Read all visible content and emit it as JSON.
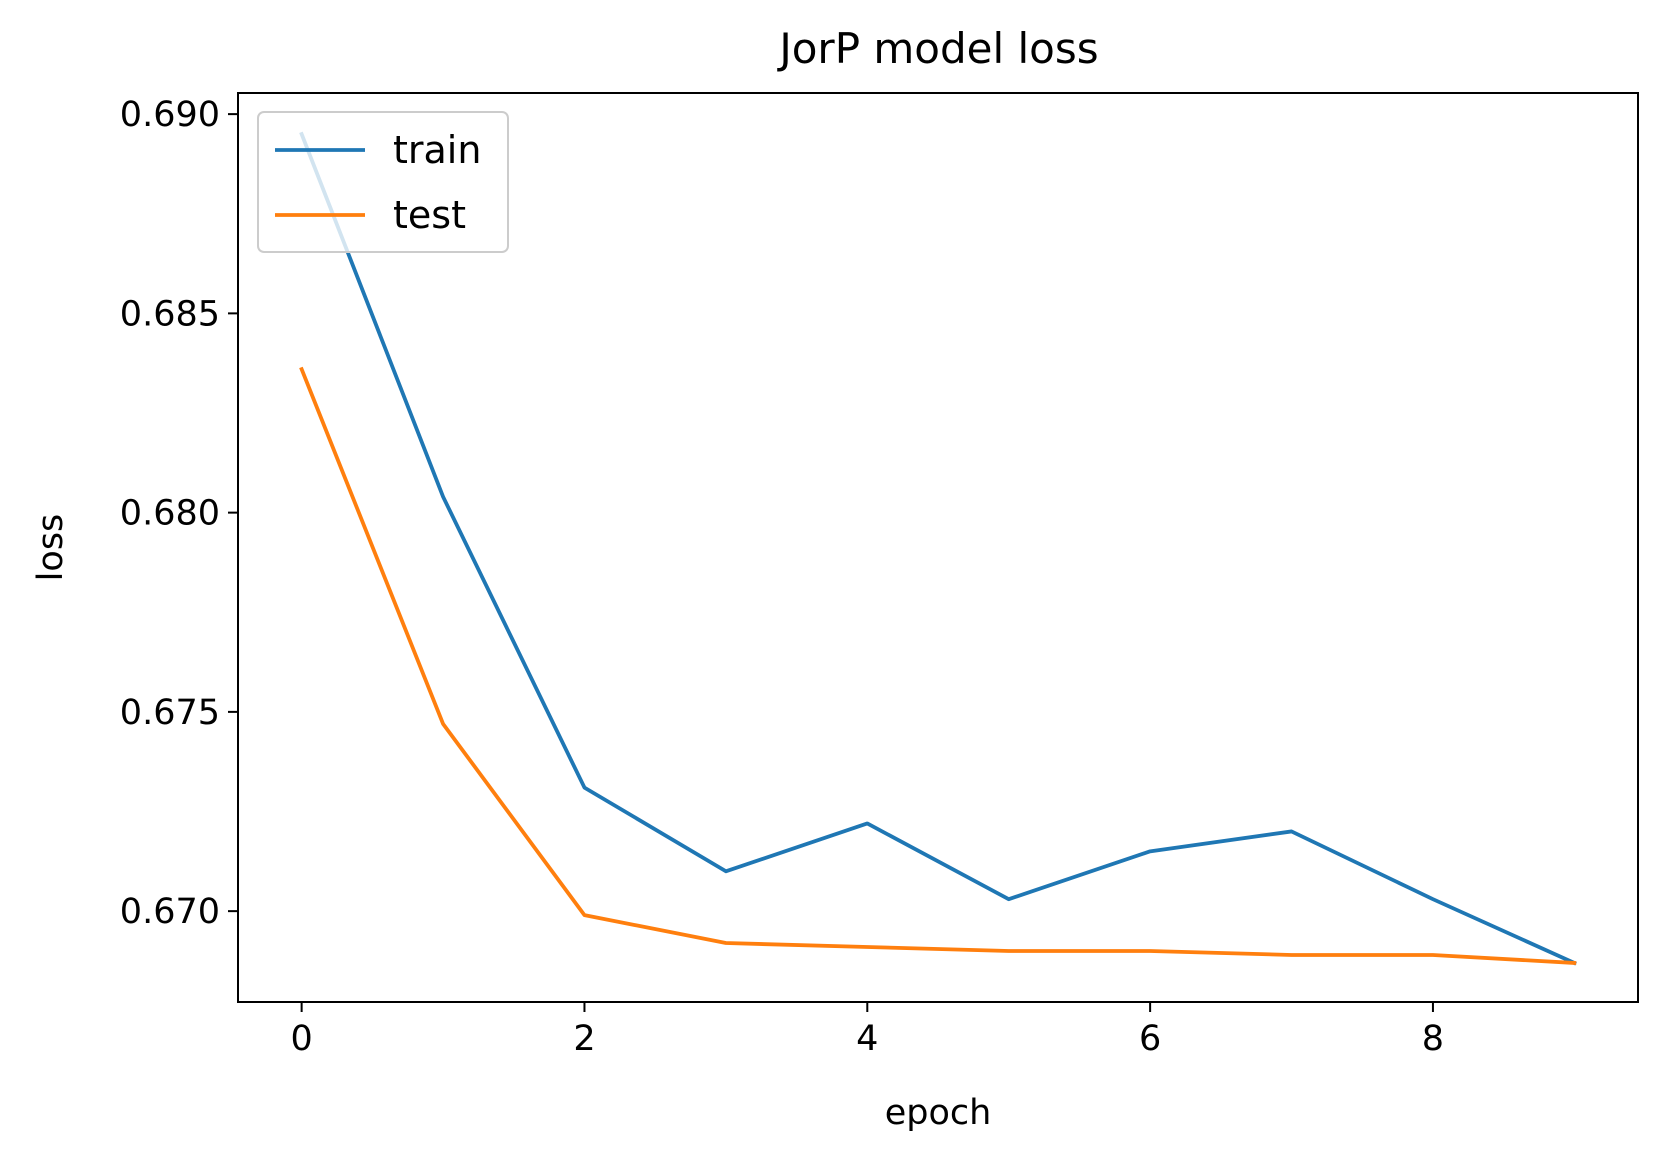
{
  "chart_data": {
    "type": "line",
    "title": "JorP model loss",
    "xlabel": "epoch",
    "ylabel": "loss",
    "x": [
      0,
      1,
      2,
      3,
      4,
      5,
      6,
      7,
      8,
      9
    ],
    "xlim": [
      -0.45,
      9.45
    ],
    "ylim": [
      0.66772,
      0.69053
    ],
    "xticks": [
      0,
      2,
      4,
      6,
      8
    ],
    "xtick_labels": [
      "0",
      "2",
      "4",
      "6",
      "8"
    ],
    "yticks": [
      0.67,
      0.675,
      0.68,
      0.685,
      0.69
    ],
    "ytick_labels": [
      "0.670",
      "0.675",
      "0.680",
      "0.685",
      "0.690"
    ],
    "grid": false,
    "legend_position": "upper left",
    "series": [
      {
        "name": "train",
        "color": "#1f77b4",
        "values": [
          0.6895,
          0.6804,
          0.6731,
          0.671,
          0.6722,
          0.6703,
          0.6715,
          0.672,
          0.6703,
          0.6687
        ]
      },
      {
        "name": "test",
        "color": "#ff7f0e",
        "values": [
          0.6836,
          0.6747,
          0.6699,
          0.6692,
          0.6691,
          0.669,
          0.669,
          0.6689,
          0.6689,
          0.6687
        ]
      }
    ]
  }
}
